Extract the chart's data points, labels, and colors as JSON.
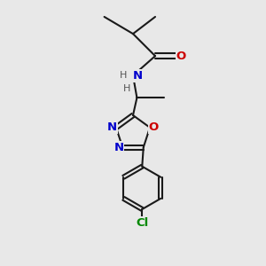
{
  "bg_color": "#e8e8e8",
  "bond_color": "#1a1a1a",
  "bond_width": 1.5,
  "atom_colors": {
    "O": "#cc0000",
    "N": "#0000cc",
    "Cl": "#008800",
    "H": "#555555",
    "C": "#1a1a1a"
  },
  "font_size_atom": 9.5,
  "font_size_small": 8.0,
  "font_size_cl": 9.5
}
